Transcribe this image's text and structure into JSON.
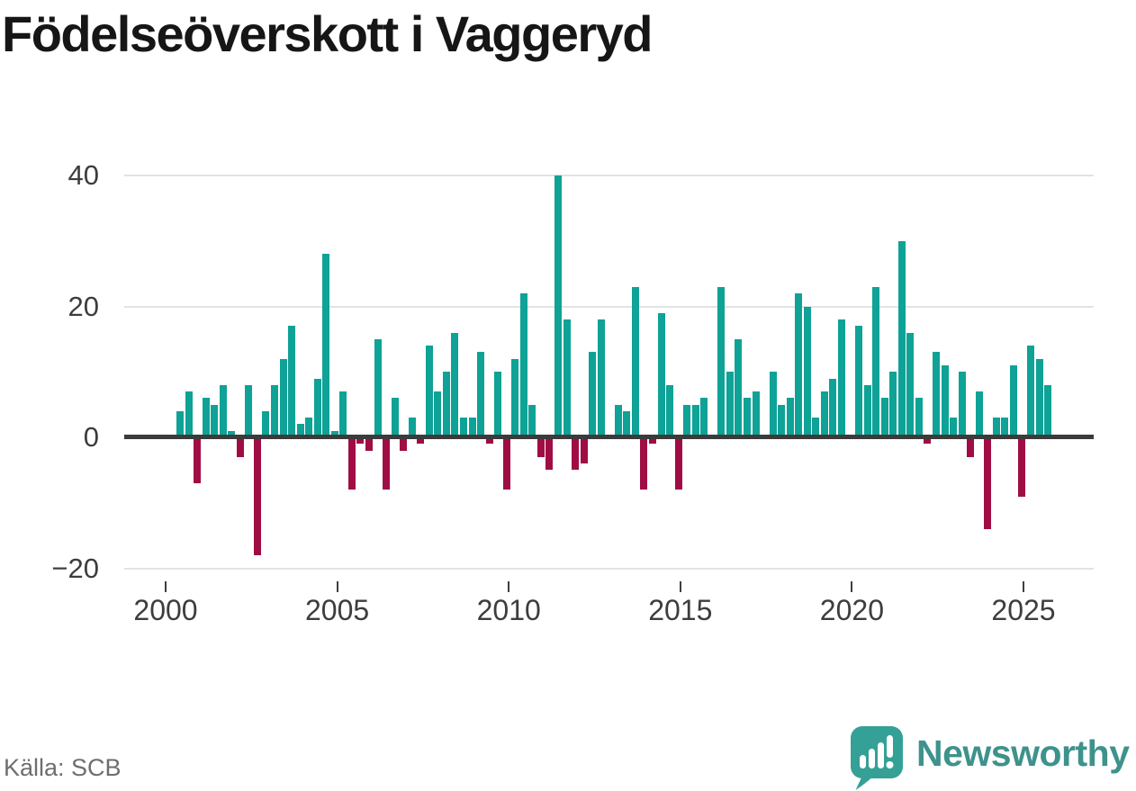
{
  "logo": {
    "brand": "Newsworthy"
  },
  "chart_data": {
    "type": "bar",
    "title": "Födelseöverskott i Vaggeryd",
    "source": "Källa: SCB",
    "frequency": "quarterly",
    "start": "2000-Q2",
    "end": "2025-Q3",
    "x_tick_labels": [
      "2000",
      "2005",
      "2010",
      "2015",
      "2020",
      "2025"
    ],
    "y_tick_labels": [
      "40",
      "20",
      "0",
      "−20"
    ],
    "y_ticks": [
      40,
      20,
      0,
      -20
    ],
    "ylim": [
      -20,
      40
    ],
    "grid": "horizontal",
    "legend": "none",
    "positive_color": "#0FA296",
    "negative_color": "#A00D44",
    "values": [
      4,
      7,
      -7,
      6,
      5,
      8,
      1,
      -3,
      8,
      -18,
      4,
      8,
      12,
      17,
      2,
      3,
      9,
      28,
      1,
      7,
      -8,
      -1,
      -2,
      15,
      -8,
      6,
      -2,
      3,
      -1,
      14,
      7,
      10,
      16,
      3,
      3,
      13,
      -1,
      10,
      -8,
      12,
      22,
      5,
      -3,
      -5,
      40,
      18,
      -5,
      -4,
      13,
      18,
      0,
      5,
      4,
      23,
      -8,
      -1,
      19,
      8,
      -8,
      5,
      5,
      6,
      0,
      23,
      10,
      15,
      6,
      7,
      0,
      10,
      5,
      6,
      22,
      20,
      3,
      7,
      9,
      18,
      0,
      17,
      8,
      23,
      6,
      10,
      30,
      16,
      6,
      -1,
      13,
      11,
      3,
      10,
      -3,
      7,
      -14,
      3,
      3,
      11,
      -9,
      14,
      12,
      8
    ]
  }
}
